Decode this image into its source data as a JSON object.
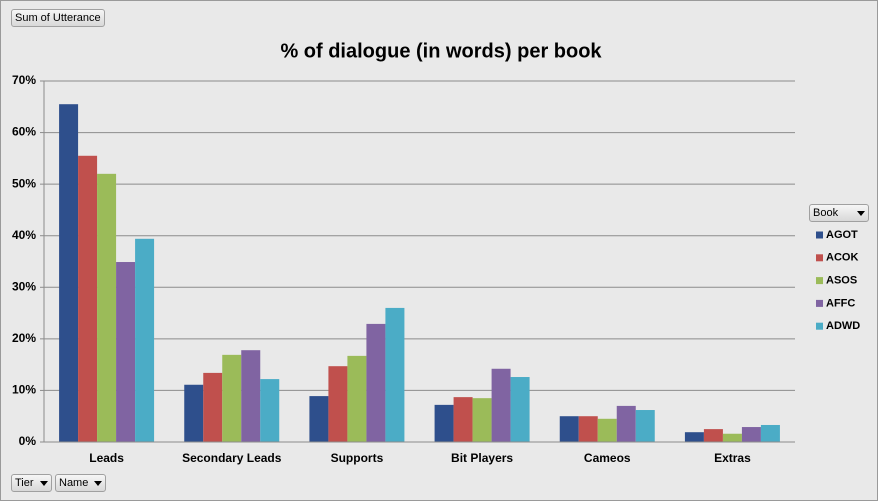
{
  "pivot_buttons": {
    "value_field": "Sum of Utterance",
    "legend_field": "Book",
    "axis_fields": [
      "Tier",
      "Name"
    ]
  },
  "chart_data": {
    "type": "bar",
    "title": "% of dialogue (in words) per book",
    "categories": [
      "Leads",
      "Secondary Leads",
      "Supports",
      "Bit Players",
      "Cameos",
      "Extras"
    ],
    "series": [
      {
        "name": "AGOT",
        "color": "#2e4f8c",
        "values": [
          65.5,
          11.1,
          8.9,
          7.2,
          5.0,
          1.9
        ]
      },
      {
        "name": "ACOK",
        "color": "#c0504d",
        "values": [
          55.5,
          13.4,
          14.7,
          8.7,
          5.0,
          2.5
        ]
      },
      {
        "name": "ASOS",
        "color": "#9bbb59",
        "values": [
          52.0,
          16.9,
          16.7,
          8.5,
          4.5,
          1.6
        ]
      },
      {
        "name": "AFFC",
        "color": "#8064a2",
        "values": [
          34.9,
          17.8,
          22.9,
          14.2,
          7.0,
          2.9
        ]
      },
      {
        "name": "ADWD",
        "color": "#4bacc6",
        "values": [
          39.4,
          12.2,
          26.0,
          12.6,
          6.2,
          3.3
        ]
      }
    ],
    "ylim": [
      0,
      70
    ],
    "yticks": [
      {
        "value": 0,
        "label": "0%"
      },
      {
        "value": 10,
        "label": "10%"
      },
      {
        "value": 20,
        "label": "20%"
      },
      {
        "value": 30,
        "label": "30%"
      },
      {
        "value": 40,
        "label": "40%"
      },
      {
        "value": 50,
        "label": "50%"
      },
      {
        "value": 60,
        "label": "60%"
      },
      {
        "value": 70,
        "label": "70%"
      }
    ],
    "grid": true,
    "legend": "right"
  }
}
